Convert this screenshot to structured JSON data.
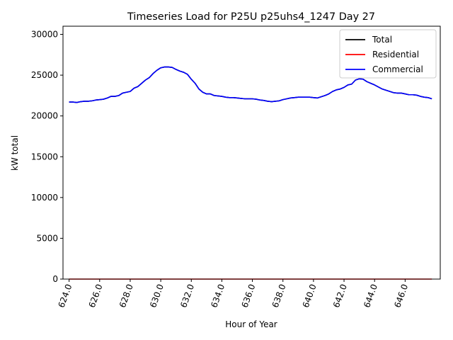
{
  "chart_data": {
    "type": "line",
    "title": "Timeseries Load for P25U p25uhs4_1247  Day 27",
    "xlabel": "Hour of Year",
    "ylabel": "kW total",
    "xlim": [
      623.6,
      648.3
    ],
    "ylim": [
      0,
      31000
    ],
    "x_ticks": [
      624,
      626,
      628,
      630,
      632,
      634,
      636,
      638,
      640,
      642,
      644,
      646
    ],
    "x_tick_labels": [
      "624.0",
      "626.0",
      "628.0",
      "630.0",
      "632.0",
      "634.0",
      "636.0",
      "638.0",
      "640.0",
      "642.0",
      "644.0",
      "646.0"
    ],
    "y_ticks": [
      0,
      5000,
      10000,
      15000,
      20000,
      25000,
      30000
    ],
    "y_tick_labels": [
      "0",
      "5000",
      "10000",
      "15000",
      "20000",
      "25000",
      "30000"
    ],
    "legend_position": "top-right",
    "series": [
      {
        "name": "Total",
        "color": "#000000",
        "x": [
          624.0,
          624.25,
          624.5,
          624.75,
          625.0,
          625.25,
          625.5,
          625.75,
          626.0,
          626.25,
          626.5,
          626.75,
          627.0,
          627.25,
          627.5,
          627.75,
          628.0,
          628.25,
          628.5,
          628.75,
          629.0,
          629.25,
          629.5,
          629.75,
          630.0,
          630.25,
          630.5,
          630.75,
          631.0,
          631.25,
          631.5,
          631.75,
          632.0,
          632.25,
          632.5,
          632.75,
          633.0,
          633.25,
          633.5,
          633.75,
          634.0,
          634.25,
          634.5,
          634.75,
          635.0,
          635.25,
          635.5,
          635.75,
          636.0,
          636.25,
          636.5,
          636.75,
          637.0,
          637.25,
          637.5,
          637.75,
          638.0,
          638.25,
          638.5,
          638.75,
          639.0,
          639.25,
          639.5,
          639.75,
          640.0,
          640.25,
          640.5,
          640.75,
          641.0,
          641.25,
          641.5,
          641.75,
          642.0,
          642.25,
          642.5,
          642.75,
          643.0,
          643.25,
          643.5,
          643.75,
          644.0,
          644.25,
          644.5,
          644.75,
          645.0,
          645.25,
          645.5,
          645.75,
          646.0,
          646.25,
          646.5,
          646.75,
          647.0,
          647.25,
          647.5,
          647.75
        ],
        "values": [
          21700,
          21700,
          21650,
          21750,
          21800,
          21800,
          21850,
          21950,
          22000,
          22050,
          22200,
          22400,
          22400,
          22500,
          22800,
          22900,
          23000,
          23400,
          23600,
          24000,
          24400,
          24700,
          25200,
          25600,
          25900,
          26000,
          26000,
          25950,
          25700,
          25500,
          25350,
          25100,
          24500,
          24000,
          23300,
          22900,
          22700,
          22700,
          22500,
          22450,
          22400,
          22300,
          22250,
          22250,
          22200,
          22150,
          22100,
          22100,
          22100,
          22050,
          21950,
          21900,
          21800,
          21750,
          21800,
          21850,
          22000,
          22100,
          22200,
          22250,
          22300,
          22300,
          22300,
          22300,
          22250,
          22200,
          22350,
          22500,
          22700,
          23000,
          23200,
          23300,
          23500,
          23800,
          23900,
          24400,
          24550,
          24500,
          24200,
          24000,
          23800,
          23550,
          23300,
          23150,
          23000,
          22850,
          22800,
          22800,
          22700,
          22600,
          22600,
          22550,
          22400,
          22300,
          22250,
          22100
        ]
      },
      {
        "name": "Residential",
        "color": "#ff0000",
        "x": [
          624.0,
          647.75
        ],
        "values": [
          0,
          0
        ]
      },
      {
        "name": "Commercial",
        "color": "#0000ff",
        "x": [
          624.0,
          624.25,
          624.5,
          624.75,
          625.0,
          625.25,
          625.5,
          625.75,
          626.0,
          626.25,
          626.5,
          626.75,
          627.0,
          627.25,
          627.5,
          627.75,
          628.0,
          628.25,
          628.5,
          628.75,
          629.0,
          629.25,
          629.5,
          629.75,
          630.0,
          630.25,
          630.5,
          630.75,
          631.0,
          631.25,
          631.5,
          631.75,
          632.0,
          632.25,
          632.5,
          632.75,
          633.0,
          633.25,
          633.5,
          633.75,
          634.0,
          634.25,
          634.5,
          634.75,
          635.0,
          635.25,
          635.5,
          635.75,
          636.0,
          636.25,
          636.5,
          636.75,
          637.0,
          637.25,
          637.5,
          637.75,
          638.0,
          638.25,
          638.5,
          638.75,
          639.0,
          639.25,
          639.5,
          639.75,
          640.0,
          640.25,
          640.5,
          640.75,
          641.0,
          641.25,
          641.5,
          641.75,
          642.0,
          642.25,
          642.5,
          642.75,
          643.0,
          643.25,
          643.5,
          643.75,
          644.0,
          644.25,
          644.5,
          644.75,
          645.0,
          645.25,
          645.5,
          645.75,
          646.0,
          646.25,
          646.5,
          646.75,
          647.0,
          647.25,
          647.5,
          647.75
        ],
        "values": [
          21700,
          21700,
          21650,
          21750,
          21800,
          21800,
          21850,
          21950,
          22000,
          22050,
          22200,
          22400,
          22400,
          22500,
          22800,
          22900,
          23000,
          23400,
          23600,
          24000,
          24400,
          24700,
          25200,
          25600,
          25900,
          26000,
          26000,
          25950,
          25700,
          25500,
          25350,
          25100,
          24500,
          24000,
          23300,
          22900,
          22700,
          22700,
          22500,
          22450,
          22400,
          22300,
          22250,
          22250,
          22200,
          22150,
          22100,
          22100,
          22100,
          22050,
          21950,
          21900,
          21800,
          21750,
          21800,
          21850,
          22000,
          22100,
          22200,
          22250,
          22300,
          22300,
          22300,
          22300,
          22250,
          22200,
          22350,
          22500,
          22700,
          23000,
          23200,
          23300,
          23500,
          23800,
          23900,
          24400,
          24550,
          24500,
          24200,
          24000,
          23800,
          23550,
          23300,
          23150,
          23000,
          22850,
          22800,
          22800,
          22700,
          22600,
          22600,
          22550,
          22400,
          22300,
          22250,
          22100
        ]
      }
    ]
  }
}
